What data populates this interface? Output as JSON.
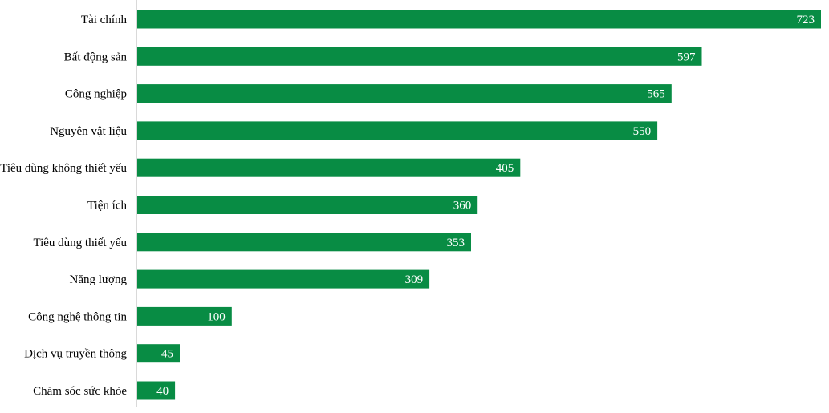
{
  "colors": {
    "bar": "#088c44",
    "value_label": "#ffffff",
    "category_label": "#000000",
    "axis": "#d9d9d9"
  },
  "chart_data": {
    "type": "bar",
    "orientation": "horizontal",
    "title": "",
    "xlabel": "",
    "ylabel": "",
    "categories": [
      "Tài chính",
      "Bất động sản",
      "Công nghiệp",
      "Nguyên vật liệu",
      "Tiêu dùng không thiết yếu",
      "Tiện ích",
      "Tiêu dùng thiết yếu",
      "Năng lượng",
      "Công nghệ thông tin",
      "Dịch vụ truyền thông",
      "Chăm sóc sức khỏe"
    ],
    "values": [
      723,
      597,
      565,
      550,
      405,
      360,
      353,
      309,
      100,
      45,
      40
    ],
    "xlim": [
      0,
      723
    ],
    "grid": false,
    "legend": "none",
    "data_labels": true
  }
}
